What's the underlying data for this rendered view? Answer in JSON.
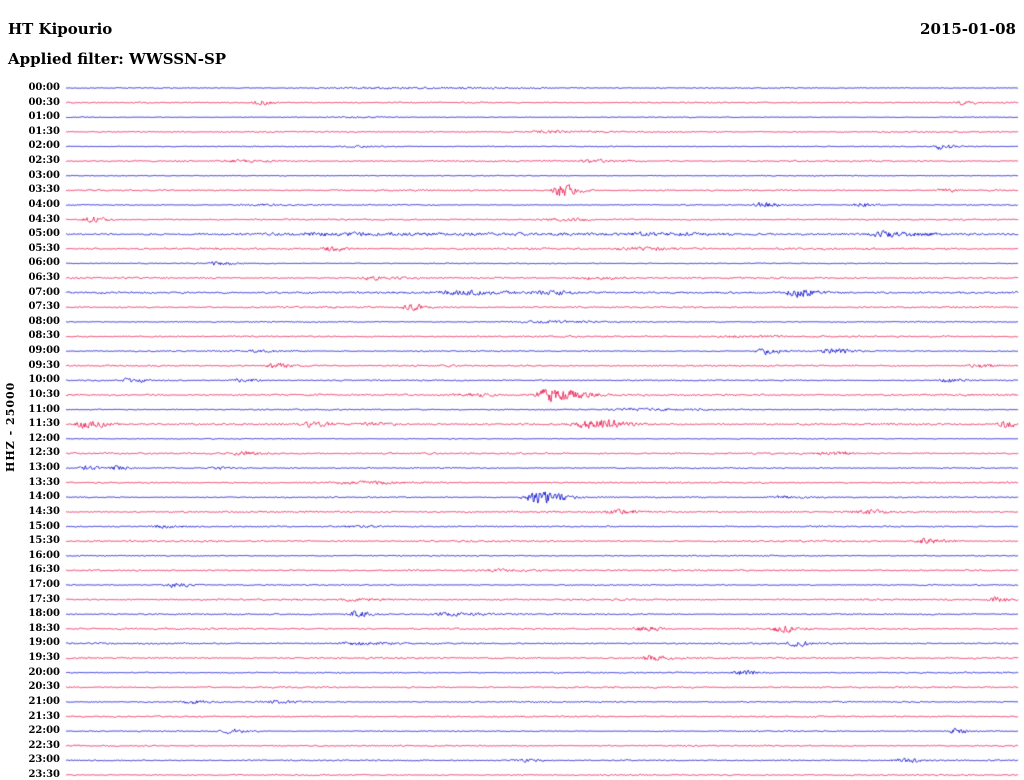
{
  "colors": {
    "blue": "#0000cc",
    "red": "#e8114a",
    "text": "#000000",
    "background": "#ffffff"
  },
  "chart_data": {
    "type": "line",
    "title": "HT Kipourio",
    "date": "2015-01-08",
    "filter_label": "Applied filter: WWSSN-SP",
    "ylabel": "HHZ - 25000",
    "x_axis": "minutes within each 30-minute row (0-30)",
    "row_interval_minutes": 30,
    "grid": false,
    "legend": false,
    "trace_color_cycle": [
      "blue",
      "red"
    ],
    "events_format": "[position_fraction_along_row, peak_amplitude_px, envelope_sigma_fraction]",
    "rows": [
      {
        "label": "00:00",
        "color": "blue",
        "noise": 0.55,
        "events": [
          [
            0.33,
            1.0,
            0.04
          ]
        ]
      },
      {
        "label": "00:30",
        "color": "red",
        "noise": 0.8,
        "events": [
          [
            0.202,
            3.2,
            0.004
          ],
          [
            0.94,
            2.4,
            0.004
          ]
        ]
      },
      {
        "label": "01:00",
        "color": "blue",
        "noise": 0.5,
        "events": [
          [
            0.3,
            0.8,
            0.01
          ]
        ]
      },
      {
        "label": "01:30",
        "color": "red",
        "noise": 0.85,
        "events": [
          [
            0.5,
            1.2,
            0.015
          ]
        ]
      },
      {
        "label": "02:00",
        "color": "blue",
        "noise": 0.55,
        "events": [
          [
            0.918,
            3.8,
            0.004
          ],
          [
            0.3,
            1.0,
            0.01
          ]
        ]
      },
      {
        "label": "02:30",
        "color": "red",
        "noise": 0.95,
        "events": [
          [
            0.18,
            1.4,
            0.008
          ],
          [
            0.55,
            1.4,
            0.012
          ]
        ]
      },
      {
        "label": "03:00",
        "color": "blue",
        "noise": 0.5,
        "events": []
      },
      {
        "label": "03:30",
        "color": "red",
        "noise": 0.9,
        "events": [
          [
            0.519,
            8.5,
            0.005
          ],
          [
            0.92,
            2.2,
            0.004
          ]
        ]
      },
      {
        "label": "04:00",
        "color": "blue",
        "noise": 0.65,
        "events": [
          [
            0.729,
            3.2,
            0.005
          ],
          [
            0.834,
            2.8,
            0.005
          ],
          [
            0.2,
            1.2,
            0.01
          ]
        ]
      },
      {
        "label": "04:30",
        "color": "red",
        "noise": 0.9,
        "events": [
          [
            0.025,
            3.2,
            0.005
          ],
          [
            0.52,
            1.4,
            0.01
          ]
        ]
      },
      {
        "label": "05:00",
        "color": "blue",
        "noise": 1.35,
        "events": [
          [
            0.3,
            1.5,
            0.05
          ],
          [
            0.86,
            2.6,
            0.012
          ],
          [
            0.62,
            1.5,
            0.02
          ]
        ]
      },
      {
        "label": "05:30",
        "color": "red",
        "noise": 1.15,
        "events": [
          [
            0.277,
            2.4,
            0.006
          ],
          [
            0.6,
            1.6,
            0.015
          ]
        ]
      },
      {
        "label": "06:00",
        "color": "blue",
        "noise": 0.6,
        "events": [
          [
            0.157,
            2.8,
            0.005
          ]
        ]
      },
      {
        "label": "06:30",
        "color": "red",
        "noise": 1.05,
        "events": [
          [
            0.319,
            2.2,
            0.007
          ],
          [
            0.55,
            1.9,
            0.008
          ]
        ]
      },
      {
        "label": "07:00",
        "color": "blue",
        "noise": 1.25,
        "events": [
          [
            0.41,
            2.4,
            0.015
          ],
          [
            0.5,
            2.2,
            0.012
          ],
          [
            0.766,
            5.5,
            0.007
          ]
        ]
      },
      {
        "label": "07:30",
        "color": "red",
        "noise": 1.0,
        "events": [
          [
            0.361,
            3.8,
            0.005
          ]
        ]
      },
      {
        "label": "08:00",
        "color": "blue",
        "noise": 0.7,
        "events": [
          [
            0.5,
            1.2,
            0.02
          ]
        ]
      },
      {
        "label": "08:30",
        "color": "red",
        "noise": 0.9,
        "events": [
          [
            0.7,
            1.2,
            0.015
          ]
        ]
      },
      {
        "label": "09:00",
        "color": "blue",
        "noise": 0.75,
        "events": [
          [
            0.734,
            3.8,
            0.005
          ],
          [
            0.802,
            3.2,
            0.006
          ],
          [
            0.2,
            1.3,
            0.01
          ]
        ]
      },
      {
        "label": "09:30",
        "color": "red",
        "noise": 1.0,
        "events": [
          [
            0.219,
            3.2,
            0.006
          ],
          [
            0.955,
            2.8,
            0.005
          ]
        ]
      },
      {
        "label": "10:00",
        "color": "blue",
        "noise": 0.75,
        "events": [
          [
            0.067,
            2.8,
            0.005
          ],
          [
            0.183,
            2.4,
            0.005
          ],
          [
            0.923,
            2.4,
            0.005
          ]
        ]
      },
      {
        "label": "10:30",
        "color": "red",
        "noise": 1.1,
        "events": [
          [
            0.508,
            9.5,
            0.009
          ],
          [
            0.42,
            1.8,
            0.01
          ]
        ]
      },
      {
        "label": "11:00",
        "color": "blue",
        "noise": 0.75,
        "events": [
          [
            0.6,
            1.2,
            0.02
          ]
        ]
      },
      {
        "label": "11:30",
        "color": "red",
        "noise": 1.15,
        "events": [
          [
            0.02,
            5.5,
            0.006
          ],
          [
            0.256,
            2.8,
            0.007
          ],
          [
            0.319,
            2.4,
            0.006
          ],
          [
            0.55,
            6.5,
            0.01
          ],
          [
            0.986,
            3.8,
            0.005
          ]
        ]
      },
      {
        "label": "12:00",
        "color": "blue",
        "noise": 0.5,
        "events": []
      },
      {
        "label": "12:30",
        "color": "red",
        "noise": 1.05,
        "events": [
          [
            0.183,
            2.2,
            0.006
          ],
          [
            0.8,
            1.7,
            0.008
          ]
        ]
      },
      {
        "label": "13:00",
        "color": "blue",
        "noise": 0.7,
        "events": [
          [
            0.02,
            2.4,
            0.004
          ],
          [
            0.051,
            2.4,
            0.004
          ],
          [
            0.16,
            1.6,
            0.005
          ]
        ]
      },
      {
        "label": "13:30",
        "color": "red",
        "noise": 0.95,
        "events": [
          [
            0.3,
            1.5,
            0.015
          ]
        ]
      },
      {
        "label": "14:00",
        "color": "blue",
        "noise": 0.75,
        "events": [
          [
            0.493,
            8.5,
            0.008
          ],
          [
            0.75,
            1.6,
            0.01
          ]
        ]
      },
      {
        "label": "14:30",
        "color": "red",
        "noise": 1.05,
        "events": [
          [
            0.577,
            2.4,
            0.007
          ],
          [
            0.834,
            2.2,
            0.007
          ]
        ]
      },
      {
        "label": "15:00",
        "color": "blue",
        "noise": 0.8,
        "events": [
          [
            0.1,
            1.5,
            0.008
          ],
          [
            0.3,
            1.4,
            0.01
          ]
        ]
      },
      {
        "label": "15:30",
        "color": "red",
        "noise": 1.0,
        "events": [
          [
            0.902,
            3.2,
            0.006
          ]
        ]
      },
      {
        "label": "16:00",
        "color": "blue",
        "noise": 0.7,
        "events": []
      },
      {
        "label": "16:30",
        "color": "red",
        "noise": 0.95,
        "events": [
          [
            0.45,
            1.3,
            0.015
          ]
        ]
      },
      {
        "label": "17:00",
        "color": "blue",
        "noise": 0.7,
        "events": [
          [
            0.109,
            2.8,
            0.006
          ]
        ]
      },
      {
        "label": "17:30",
        "color": "red",
        "noise": 1.0,
        "events": [
          [
            0.976,
            2.8,
            0.005
          ],
          [
            0.3,
            1.5,
            0.01
          ]
        ]
      },
      {
        "label": "18:00",
        "color": "blue",
        "noise": 0.85,
        "events": [
          [
            0.304,
            4.2,
            0.005
          ],
          [
            0.4,
            1.8,
            0.012
          ]
        ]
      },
      {
        "label": "18:30",
        "color": "red",
        "noise": 1.0,
        "events": [
          [
            0.603,
            2.8,
            0.006
          ],
          [
            0.75,
            3.8,
            0.006
          ]
        ]
      },
      {
        "label": "19:00",
        "color": "blue",
        "noise": 0.95,
        "events": [
          [
            0.766,
            2.8,
            0.006
          ],
          [
            0.3,
            1.6,
            0.012
          ]
        ]
      },
      {
        "label": "19:30",
        "color": "red",
        "noise": 1.0,
        "events": [
          [
            0.613,
            3.2,
            0.006
          ]
        ]
      },
      {
        "label": "20:00",
        "color": "blue",
        "noise": 0.8,
        "events": [
          [
            0.708,
            2.8,
            0.006
          ]
        ]
      },
      {
        "label": "20:30",
        "color": "red",
        "noise": 0.95,
        "events": []
      },
      {
        "label": "21:00",
        "color": "blue",
        "noise": 0.8,
        "events": [
          [
            0.13,
            2.4,
            0.005
          ],
          [
            0.219,
            2.0,
            0.006
          ]
        ]
      },
      {
        "label": "21:30",
        "color": "red",
        "noise": 0.85,
        "events": []
      },
      {
        "label": "22:00",
        "color": "blue",
        "noise": 0.65,
        "events": [
          [
            0.172,
            3.2,
            0.005
          ],
          [
            0.934,
            3.2,
            0.005
          ]
        ]
      },
      {
        "label": "22:30",
        "color": "red",
        "noise": 0.85,
        "events": []
      },
      {
        "label": "23:00",
        "color": "blue",
        "noise": 0.75,
        "events": [
          [
            0.477,
            2.0,
            0.006
          ],
          [
            0.876,
            2.8,
            0.006
          ]
        ]
      },
      {
        "label": "23:30",
        "color": "red",
        "noise": 0.85,
        "events": []
      }
    ]
  }
}
